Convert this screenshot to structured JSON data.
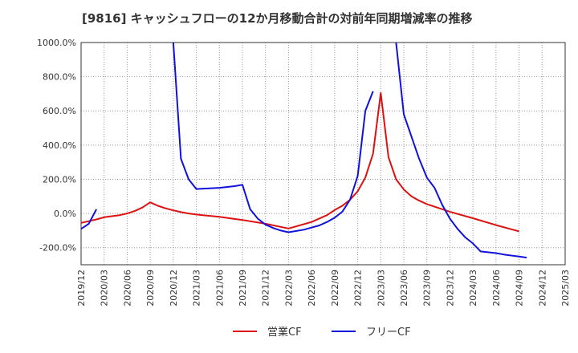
{
  "chart_data": {
    "type": "line",
    "title": "[9816]  キャッシュフローの12か月移動合計の対前年同期増減率の推移",
    "xlabel": "",
    "ylabel": "",
    "y_unit": "%",
    "ylim": [
      -300,
      1000
    ],
    "yticks": [
      -200,
      0,
      200,
      400,
      600,
      800,
      1000
    ],
    "ytick_labels": [
      "-200.0%",
      "0.0%",
      "200.0%",
      "400.0%",
      "600.0%",
      "800.0%",
      "1000.0%"
    ],
    "xticks": [
      "2019/12",
      "2020/03",
      "2020/06",
      "2020/09",
      "2020/12",
      "2021/03",
      "2021/06",
      "2021/09",
      "2021/12",
      "2022/03",
      "2022/06",
      "2022/09",
      "2022/12",
      "2023/03",
      "2023/06",
      "2023/09",
      "2023/12",
      "2024/03",
      "2024/06",
      "2024/09",
      "2024/12",
      "2025/03"
    ],
    "grid": true,
    "legend": "bottom-center",
    "series": [
      {
        "name": "営業CF",
        "color": "#dd1111",
        "points": [
          [
            "2019/12",
            -55
          ],
          [
            "2020/01",
            -45
          ],
          [
            "2020/02",
            -35
          ],
          [
            "2020/03",
            -22
          ],
          [
            "2020/05",
            -10
          ],
          [
            "2020/06",
            0
          ],
          [
            "2020/07",
            15
          ],
          [
            "2020/08",
            35
          ],
          [
            "2020/09",
            65
          ],
          [
            "2020/10",
            45
          ],
          [
            "2020/11",
            30
          ],
          [
            "2020/12",
            18
          ],
          [
            "2021/01",
            8
          ],
          [
            "2021/02",
            0
          ],
          [
            "2021/03",
            -6
          ],
          [
            "2021/06",
            -20
          ],
          [
            "2021/09",
            -38
          ],
          [
            "2021/12",
            -60
          ],
          [
            "2022/03",
            -88
          ],
          [
            "2022/06",
            -50
          ],
          [
            "2022/08",
            -10
          ],
          [
            "2022/09",
            20
          ],
          [
            "2022/10",
            45
          ],
          [
            "2022/11",
            80
          ],
          [
            "2022/12",
            130
          ],
          [
            "2023/01",
            210
          ],
          [
            "2023/02",
            350
          ],
          [
            "2023/03",
            705
          ],
          [
            "2023/04",
            330
          ],
          [
            "2023/05",
            200
          ],
          [
            "2023/06",
            140
          ],
          [
            "2023/07",
            100
          ],
          [
            "2023/08",
            75
          ],
          [
            "2023/09",
            55
          ],
          [
            "2023/12",
            10
          ],
          [
            "2024/03",
            -28
          ],
          [
            "2024/06",
            -68
          ],
          [
            "2024/09",
            -105
          ]
        ]
      },
      {
        "name": "フリーCF",
        "color": "#1111dd",
        "segments": [
          [
            [
              "2019/12",
              -90
            ],
            [
              "2020/01",
              -60
            ],
            [
              "2020/02",
              25
            ]
          ],
          [
            [
              "2020/12",
              1000
            ],
            [
              "2021/01",
              320
            ],
            [
              "2021/02",
              200
            ],
            [
              "2021/03",
              143
            ],
            [
              "2021/06",
              150
            ],
            [
              "2021/08",
              160
            ],
            [
              "2021/09",
              168
            ],
            [
              "2021/10",
              25
            ],
            [
              "2021/11",
              -30
            ],
            [
              "2021/12",
              -65
            ],
            [
              "2022/01",
              -85
            ],
            [
              "2022/02",
              -100
            ],
            [
              "2022/03",
              -110
            ],
            [
              "2022/05",
              -95
            ],
            [
              "2022/07",
              -70
            ],
            [
              "2022/08",
              -50
            ],
            [
              "2022/09",
              -25
            ],
            [
              "2022/10",
              10
            ],
            [
              "2022/11",
              80
            ],
            [
              "2022/12",
              220
            ],
            [
              "2023/01",
              600
            ],
            [
              "2023/02",
              715
            ]
          ],
          [
            [
              "2023/05",
              1000
            ],
            [
              "2023/06",
              580
            ],
            [
              "2023/08",
              320
            ],
            [
              "2023/09",
              210
            ],
            [
              "2023/10",
              150
            ],
            [
              "2023/11",
              50
            ],
            [
              "2023/12",
              -30
            ],
            [
              "2024/01",
              -90
            ],
            [
              "2024/02",
              -140
            ],
            [
              "2024/03",
              -175
            ],
            [
              "2024/04",
              -222
            ],
            [
              "2024/06",
              -232
            ],
            [
              "2024/07",
              -240
            ],
            [
              "2024/09",
              -252
            ],
            [
              "2024/10",
              -258
            ]
          ]
        ]
      }
    ]
  }
}
